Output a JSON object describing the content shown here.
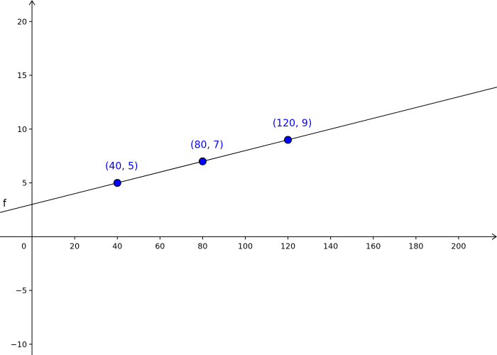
{
  "chart_data": {
    "type": "scatter",
    "xlim": [
      -15,
      218
    ],
    "ylim": [
      -11,
      22
    ],
    "grid": false,
    "x_ticks": [
      {
        "value": 0,
        "label": "0"
      },
      {
        "value": 20,
        "label": "20"
      },
      {
        "value": 40,
        "label": "40"
      },
      {
        "value": 60,
        "label": "60"
      },
      {
        "value": 80,
        "label": "80"
      },
      {
        "value": 100,
        "label": "100"
      },
      {
        "value": 120,
        "label": "120"
      },
      {
        "value": 140,
        "label": "140"
      },
      {
        "value": 160,
        "label": "160"
      },
      {
        "value": 180,
        "label": "180"
      },
      {
        "value": 200,
        "label": "200"
      }
    ],
    "y_ticks": [
      {
        "value": -10,
        "label": "−10"
      },
      {
        "value": -5,
        "label": "−5"
      },
      {
        "value": 5,
        "label": "5"
      },
      {
        "value": 10,
        "label": "10"
      },
      {
        "value": 15,
        "label": "15"
      },
      {
        "value": 20,
        "label": "20"
      }
    ],
    "points": [
      {
        "x": 40,
        "y": 5,
        "label": "(40, 5)"
      },
      {
        "x": 80,
        "y": 7,
        "label": "(80, 7)"
      },
      {
        "x": 120,
        "y": 9,
        "label": "(120, 9)"
      }
    ],
    "line": {
      "name": "f",
      "slope": 0.05,
      "intercept": 3
    },
    "colors": {
      "point_fill": "#0000ff",
      "point_label": "#0000ff",
      "axis": "#000000",
      "line": "#000000"
    }
  }
}
